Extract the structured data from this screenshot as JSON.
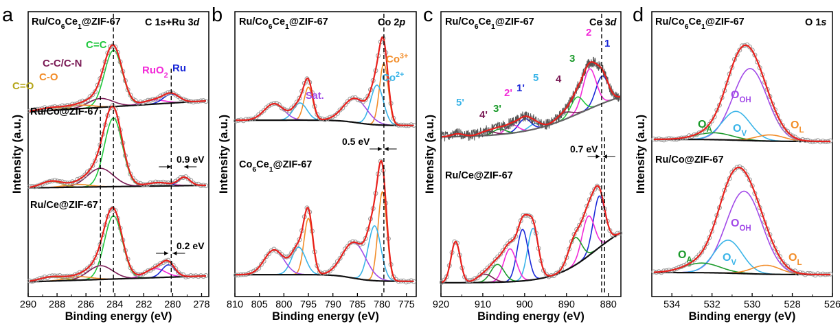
{
  "panels": [
    {
      "letter": "a",
      "xlabel": "Binding energy (eV)",
      "ylabel": "Intensity (a.u.)",
      "xticks": [
        "290",
        "288",
        "286",
        "284",
        "282",
        "280",
        "278"
      ],
      "corner_label": "C 1s+Ru 3d",
      "samples": [
        "Ru/Co6Ce1@ZIF-67",
        "Ru/Co@ZIF-67",
        "Ru/Ce@ZIF-67"
      ],
      "peak_labels": [
        "C=C",
        "C-C/C-N",
        "C-O",
        "C=O",
        "RuO2",
        "Ru"
      ],
      "shift_labels": [
        "0.9 eV",
        "0.2 eV"
      ]
    },
    {
      "letter": "b",
      "xlabel": "Binding energy (eV)",
      "ylabel": "Intensity (a.u.)",
      "xticks": [
        "810",
        "805",
        "800",
        "795",
        "790",
        "785",
        "780",
        "775"
      ],
      "corner_label": "Co 2p",
      "samples": [
        "Ru/Co6Ce1@ZIF-67",
        "Co6Ce1@ZIF-67"
      ],
      "peak_labels": [
        "Co3+",
        "Co2+",
        "Sat."
      ],
      "shift_labels": [
        "0.5 eV"
      ]
    },
    {
      "letter": "c",
      "xlabel": "Binding energy (eV)",
      "ylabel": "Intensity (a.u.)",
      "xticks": [
        "920",
        "910",
        "900",
        "890",
        "880"
      ],
      "corner_label": "Ce 3d",
      "samples": [
        "Ru/Co6Ce1@ZIF-67",
        "Ru/Ce@ZIF-67"
      ],
      "peak_labels": [
        "5'",
        "4'",
        "3'",
        "2'",
        "1'",
        "5",
        "4",
        "3",
        "2",
        "1"
      ],
      "shift_labels": [
        "0.7 eV"
      ]
    },
    {
      "letter": "d",
      "xlabel": "Binding energy (eV)",
      "ylabel": "Intensity (a.u.)",
      "xticks": [
        "534",
        "532",
        "530",
        "528",
        "526"
      ],
      "corner_label": "O 1s",
      "samples": [
        "Ru/Co6Ce1@ZIF-67",
        "Ru/Co@ZIF-67"
      ],
      "peak_labels": [
        "OOH",
        "OA",
        "OV",
        "OL"
      ],
      "shift_labels": []
    }
  ],
  "colors": {
    "raw": "#999999",
    "envelope": "#e8201c",
    "background": "#111111",
    "green": "#1fc83c",
    "purple": "#7a1a55",
    "orange": "#f28c28",
    "olive": "#b5a61a",
    "magenta": "#f22ad8",
    "blue": "#1a28d8",
    "cyan": "#39b4e8",
    "violet": "#a24ae8",
    "darkgreen": "#1a9a2a"
  },
  "chart_data": [
    {
      "type": "line",
      "panel": "a",
      "title": "C 1s+Ru 3d",
      "xlabel": "Binding energy (eV)",
      "ylabel": "Intensity (a.u.)",
      "xlim": [
        290,
        277.5
      ],
      "x_reversed": true,
      "series": [
        {
          "name": "Ru/Co6Ce1@ZIF-67",
          "peaks": [
            {
              "label": "C=C",
              "center": 284.1,
              "color": "green"
            },
            {
              "label": "C-C/C-N",
              "center": 285.0,
              "color": "purple"
            },
            {
              "label": "C-O",
              "center": 286.4,
              "color": "orange"
            },
            {
              "label": "C=O",
              "center": 288.4,
              "color": "olive"
            },
            {
              "label": "RuO2",
              "center": 281.3,
              "color": "magenta"
            },
            {
              "label": "Ru",
              "center": 280.1,
              "color": "blue"
            }
          ]
        },
        {
          "name": "Ru/Co@ZIF-67",
          "shift_eV": 0.9,
          "peaks": [
            {
              "label": "C=C",
              "center": 284.1
            },
            {
              "label": "C-C/C-N",
              "center": 285.0
            },
            {
              "label": "Ru",
              "center": 279.2
            }
          ]
        },
        {
          "name": "Ru/Ce@ZIF-67",
          "shift_eV": 0.2,
          "peaks": [
            {
              "label": "C=C",
              "center": 284.1
            },
            {
              "label": "C-C/C-N",
              "center": 285.0
            },
            {
              "label": "RuO2",
              "center": 281.2
            },
            {
              "label": "Ru",
              "center": 280.3
            }
          ]
        }
      ]
    },
    {
      "type": "line",
      "panel": "b",
      "title": "Co 2p",
      "xlabel": "Binding energy (eV)",
      "ylabel": "Intensity (a.u.)",
      "xlim": [
        810,
        773
      ],
      "x_reversed": true,
      "series": [
        {
          "name": "Ru/Co6Ce1@ZIF-67",
          "peaks": [
            {
              "label": "Co3+",
              "center": 779.6
            },
            {
              "label": "Co2+",
              "center": 781.0
            },
            {
              "label": "Sat.",
              "center": 785.5
            },
            {
              "label": "Co3+",
              "center": 795.0
            },
            {
              "label": "Co2+",
              "center": 796.7
            },
            {
              "label": "Sat.",
              "center": 802.0
            }
          ]
        },
        {
          "name": "Co6Ce1@ZIF-67",
          "shift_eV": 0.5,
          "peaks": [
            {
              "label": "Co3+",
              "center": 779.9
            },
            {
              "label": "Co2+",
              "center": 781.5
            },
            {
              "label": "Sat.",
              "center": 785.7
            },
            {
              "label": "Co3+",
              "center": 795.0
            },
            {
              "label": "Co2+",
              "center": 797.0
            },
            {
              "label": "Sat.",
              "center": 802.0
            }
          ]
        }
      ]
    },
    {
      "type": "line",
      "panel": "c",
      "title": "Ce 3d",
      "xlabel": "Binding energy (eV)",
      "ylabel": "Intensity (a.u.)",
      "xlim": [
        920,
        877
      ],
      "x_reversed": true,
      "series": [
        {
          "name": "Ru/Co6Ce1@ZIF-67",
          "peaks": [
            {
              "label": "1",
              "center": 881.5
            },
            {
              "label": "2",
              "center": 884.5
            },
            {
              "label": "3",
              "center": 887.5
            },
            {
              "label": "4",
              "center": 890.5
            },
            {
              "label": "5",
              "center": 897.5
            },
            {
              "label": "1'",
              "center": 900.0
            },
            {
              "label": "2'",
              "center": 903.0
            },
            {
              "label": "3'",
              "center": 906.0
            },
            {
              "label": "4'",
              "center": 909.0
            },
            {
              "label": "5'",
              "center": 916.0
            }
          ]
        },
        {
          "name": "Ru/Ce@ZIF-67",
          "shift_eV": 0.7,
          "peaks": [
            {
              "label": "1",
              "center": 882.2
            },
            {
              "label": "2",
              "center": 884.8
            },
            {
              "label": "3",
              "center": 888.0
            },
            {
              "label": "1'",
              "center": 900.5
            },
            {
              "label": "2'",
              "center": 903.5
            },
            {
              "label": "5'",
              "center": 916.5
            }
          ]
        }
      ]
    },
    {
      "type": "line",
      "panel": "d",
      "title": "O 1s",
      "xlabel": "Binding energy (eV)",
      "ylabel": "Intensity (a.u.)",
      "xlim": [
        535,
        526
      ],
      "x_reversed": true,
      "series": [
        {
          "name": "Ru/Co6Ce1@ZIF-67",
          "peaks": [
            {
              "label": "OOH",
              "center": 530.1
            },
            {
              "label": "OV",
              "center": 530.8
            },
            {
              "label": "OA",
              "center": 531.9
            },
            {
              "label": "OL",
              "center": 529.1
            }
          ]
        },
        {
          "name": "Ru/Co@ZIF-67",
          "peaks": [
            {
              "label": "OOH",
              "center": 530.4
            },
            {
              "label": "OV",
              "center": 531.2
            },
            {
              "label": "OA",
              "center": 532.5
            },
            {
              "label": "OL",
              "center": 529.3
            }
          ]
        }
      ]
    }
  ]
}
